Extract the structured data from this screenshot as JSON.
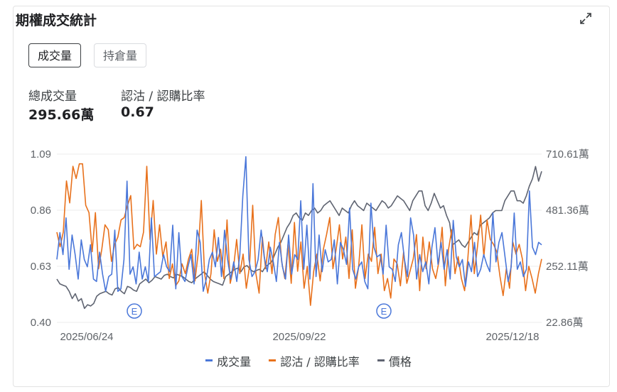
{
  "card": {
    "title": "期權成交統計",
    "expand_icon": "expand-icon"
  },
  "tabs": [
    {
      "label": "成交量",
      "active": true
    },
    {
      "label": "持倉量",
      "active": false
    }
  ],
  "stats": [
    {
      "label": "總成交量",
      "value": "295.66萬"
    },
    {
      "label": "認沽 / 認購比率",
      "value": "0.67"
    }
  ],
  "legend": [
    {
      "label": "成交量",
      "color": "#4a77d9"
    },
    {
      "label": "認沽 / 認購比率",
      "color": "#e8711c"
    },
    {
      "label": "價格",
      "color": "#5f6471"
    }
  ],
  "chart_data": {
    "type": "line",
    "x_ticks": [
      "2025/06/24",
      "2025/09/22",
      "2025/12/18"
    ],
    "y_left": {
      "ticks": [
        "1.09",
        "0.86",
        "0.63",
        "0.40"
      ],
      "range": [
        0.4,
        1.09
      ]
    },
    "y_right": {
      "ticks": [
        "710.61萬",
        "481.36萬",
        "252.11萬",
        "22.86萬"
      ],
      "range": [
        22.86,
        710.61
      ],
      "unit": "萬"
    },
    "event_markers": [
      "E",
      "E"
    ],
    "grid": true,
    "series": [
      {
        "name": "成交量",
        "axis": "right",
        "color": "#4a77d9",
        "values": [
          280,
          390,
          300,
          450,
          240,
          380,
          300,
          200,
          360,
          280,
          250,
          340,
          200,
          190,
          310,
          220,
          150,
          210,
          220,
          400,
          150,
          160,
          280,
          600,
          220,
          250,
          180,
          310,
          200,
          250,
          190,
          450,
          210,
          220,
          230,
          300,
          250,
          230,
          420,
          160,
          390,
          210,
          190,
          250,
          300,
          180,
          400,
          350,
          150,
          200,
          280,
          310,
          250,
          370,
          210,
          400,
          280,
          200,
          270,
          190,
          300,
          540,
          700,
          280,
          210,
          230,
          280,
          400,
          290,
          230,
          330,
          270,
          190,
          350,
          250,
          200,
          380,
          220,
          300,
          280,
          520,
          240,
          420,
          200,
          590,
          210,
          380,
          230,
          320,
          270,
          280,
          360,
          180,
          350,
          320,
          260,
          490,
          240,
          200,
          250,
          270,
          190,
          160,
          510,
          330,
          290,
          300,
          220,
          420,
          250,
          240,
          190,
          340,
          390,
          280,
          210,
          450,
          380,
          200,
          300,
          230,
          270,
          180,
          330,
          410,
          260,
          350,
          240,
          320,
          200,
          440,
          290,
          250,
          280,
          170,
          270,
          230,
          350,
          210,
          240,
          300,
          260,
          230,
          470,
          270,
          350,
          390,
          290,
          190,
          250,
          470,
          240,
          270,
          210,
          240,
          560,
          330,
          300,
          350,
          340
        ]
      },
      {
        "name": "認沽 / 認購比率",
        "axis": "left",
        "color": "#e8711c",
        "values": [
          0.77,
          0.71,
          0.77,
          0.98,
          0.89,
          1.04,
          0.99,
          1.05,
          1.05,
          0.88,
          0.85,
          0.69,
          0.85,
          0.62,
          0.7,
          0.8,
          0.78,
          0.65,
          0.72,
          0.75,
          0.82,
          0.83,
          0.88,
          0.92,
          0.7,
          0.72,
          0.71,
          0.77,
          1.04,
          0.74,
          0.9,
          0.68,
          0.8,
          0.67,
          0.73,
          0.58,
          0.64,
          0.55,
          0.57,
          0.64,
          0.6,
          0.66,
          0.7,
          0.57,
          0.68,
          0.9,
          0.6,
          0.52,
          0.6,
          0.78,
          0.65,
          0.7,
          0.58,
          0.82,
          0.56,
          0.62,
          0.74,
          0.6,
          0.68,
          0.54,
          0.63,
          0.88,
          0.6,
          0.52,
          0.75,
          0.62,
          0.73,
          0.6,
          0.76,
          0.83,
          0.65,
          0.58,
          0.72,
          0.56,
          0.81,
          0.61,
          0.73,
          0.54,
          0.63,
          0.47,
          0.61,
          0.68,
          0.57,
          0.7,
          0.76,
          0.83,
          0.62,
          0.7,
          0.8,
          0.66,
          0.75,
          0.58,
          0.78,
          0.54,
          0.63,
          0.8,
          0.58,
          0.68,
          0.65,
          0.79,
          0.6,
          0.68,
          0.53,
          0.58,
          0.5,
          0.66,
          0.64,
          0.55,
          0.69,
          0.56,
          0.61,
          0.66,
          0.76,
          0.53,
          0.75,
          0.62,
          0.73,
          0.62,
          0.58,
          0.65,
          0.79,
          0.55,
          0.7,
          0.78,
          0.6,
          0.67,
          0.58,
          0.53,
          0.66,
          0.84,
          0.6,
          0.71,
          0.84,
          0.67,
          0.82,
          0.74,
          0.72,
          0.69,
          0.59,
          0.51,
          0.62,
          0.54,
          0.73,
          0.68,
          0.72,
          0.66,
          0.53,
          0.63,
          0.58,
          0.52,
          0.6,
          0.66
        ]
      },
      {
        "name": "價格",
        "axis": "right",
        "color": "#5f6471",
        "values": [
          200,
          180,
          175,
          170,
          150,
          120,
          140,
          110,
          120,
          80,
          95,
          90,
          100,
          130,
          140,
          145,
          150,
          140,
          135,
          160,
          165,
          150,
          140,
          170,
          165,
          155,
          150,
          180,
          190,
          200,
          185,
          195,
          210,
          205,
          200,
          215,
          220,
          210,
          205,
          220,
          215,
          210,
          200,
          190,
          185,
          200,
          210,
          220,
          230,
          215,
          200,
          190,
          185,
          180,
          175,
          210,
          220,
          230,
          240,
          245,
          230,
          250,
          255,
          240,
          230,
          235,
          240,
          230,
          250,
          260,
          270,
          300,
          330,
          350,
          380,
          410,
          430,
          460,
          470,
          450,
          440,
          470,
          460,
          480,
          490,
          470,
          480,
          500,
          510,
          520,
          500,
          480,
          460,
          490,
          480,
          470,
          500,
          520,
          500,
          490,
          480,
          510,
          500,
          490,
          480,
          500,
          520,
          510,
          490,
          500,
          520,
          540,
          530,
          520,
          500,
          480,
          520,
          540,
          560,
          560,
          500,
          480,
          510,
          550,
          520,
          490,
          500,
          460,
          430,
          340,
          350,
          360,
          340,
          330,
          350,
          370,
          390,
          380,
          420,
          430,
          440,
          450,
          470,
          480,
          480,
          480,
          520,
          540,
          560,
          560,
          520,
          520,
          510,
          540,
          580,
          610,
          660,
          600,
          640
        ]
      }
    ]
  }
}
